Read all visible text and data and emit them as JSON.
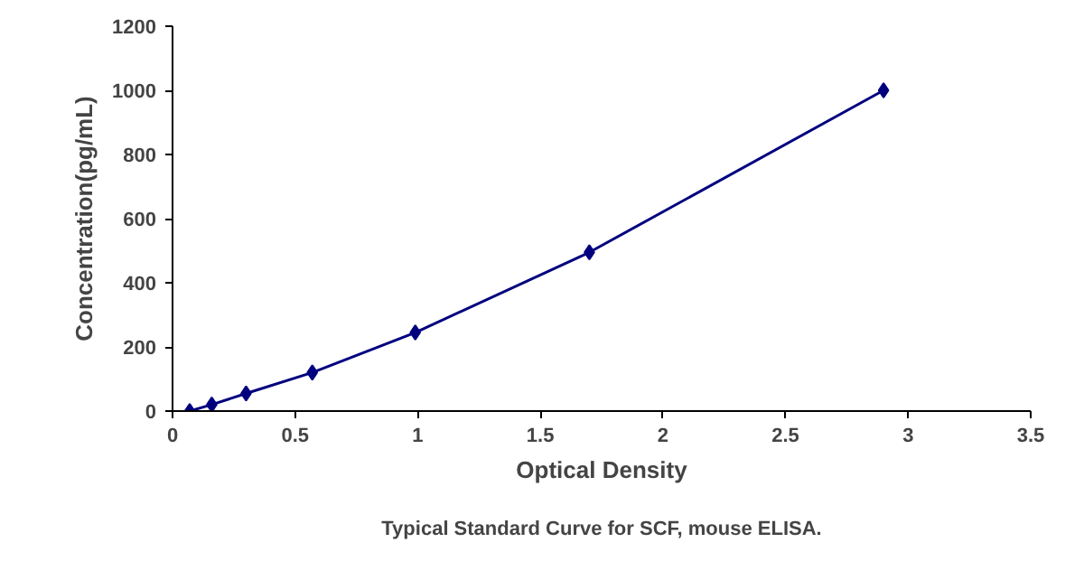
{
  "chart_data": {
    "type": "line",
    "xlabel": "Optical Density",
    "ylabel": "Concentration(pg/mL)",
    "annotations": [
      "Typical Standard Curve for SCF, mouse ELISA."
    ],
    "x": [
      0.07,
      0.16,
      0.3,
      0.57,
      0.99,
      1.7,
      2.9
    ],
    "series": [
      {
        "color": "#00007f",
        "values": [
          0,
          20,
          55,
          120,
          245,
          495,
          1000
        ]
      }
    ],
    "xlim": [
      0,
      3.5
    ],
    "ylim": [
      0,
      1200
    ],
    "xticks": [
      0,
      0.5,
      1,
      1.5,
      2,
      2.5,
      3,
      3.5
    ],
    "yticks": [
      0,
      200,
      400,
      600,
      800,
      1000,
      1200
    ],
    "grid": false,
    "marker": "diamond",
    "line_style": "solid"
  }
}
